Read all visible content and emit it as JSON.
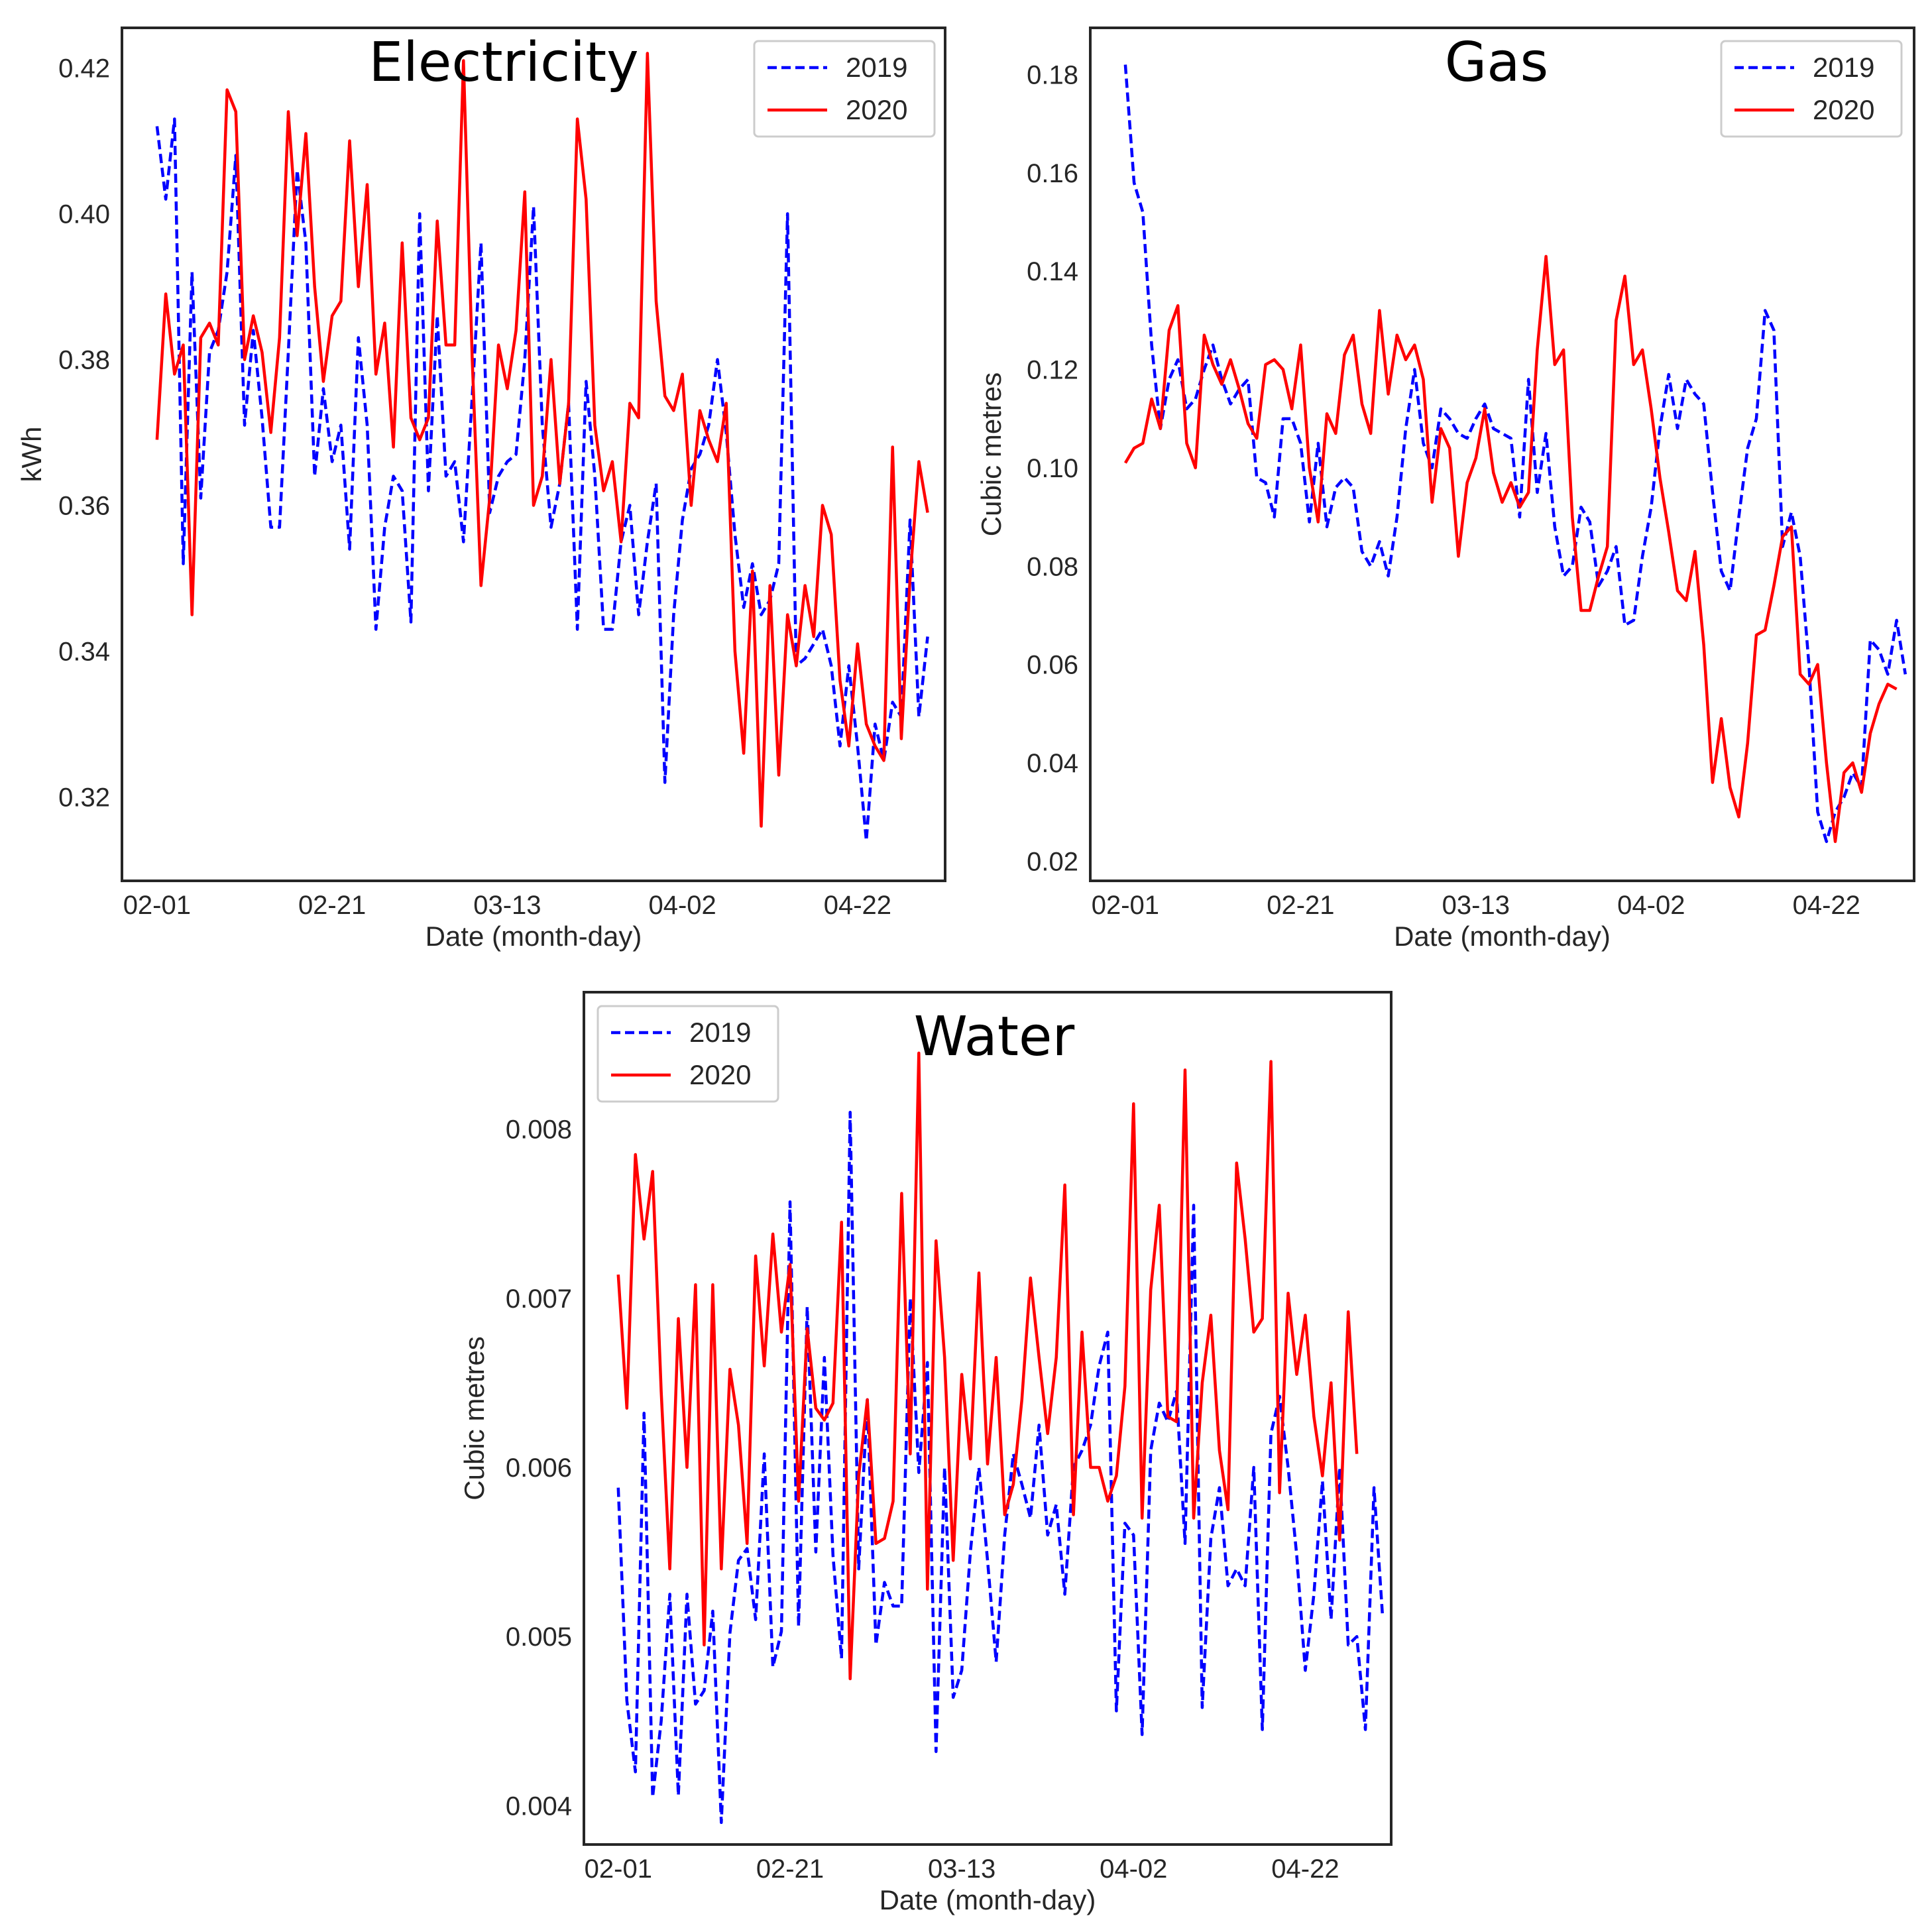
{
  "chart_data": [
    {
      "type": "line",
      "title": "Electricity",
      "xlabel": "Date (month-day)",
      "ylabel": "kWh",
      "ylim": [
        0.3085,
        0.4255
      ],
      "xlim": [
        -4,
        90
      ],
      "yticks": [
        0.32,
        0.34,
        0.36,
        0.38,
        0.4,
        0.42
      ],
      "ytick_labels": [
        "0.32",
        "0.34",
        "0.36",
        "0.38",
        "0.40",
        "0.42"
      ],
      "xticks": [
        0,
        20,
        40,
        60,
        80
      ],
      "xtick_labels": [
        "02-01",
        "02-21",
        "03-13",
        "04-02",
        "04-22"
      ],
      "grid": false,
      "legend_position": "top-right",
      "series": [
        {
          "name": "2019",
          "color": "#0000ff",
          "style": "dashed",
          "values": [
            0.412,
            0.402,
            0.413,
            0.352,
            0.392,
            0.361,
            0.381,
            0.384,
            0.392,
            0.408,
            0.371,
            0.384,
            0.372,
            0.357,
            0.357,
            0.381,
            0.406,
            0.396,
            0.364,
            0.376,
            0.366,
            0.371,
            0.354,
            0.383,
            0.371,
            0.343,
            0.357,
            0.364,
            0.362,
            0.344,
            0.4,
            0.362,
            0.386,
            0.364,
            0.366,
            0.355,
            0.375,
            0.396,
            0.359,
            0.364,
            0.366,
            0.367,
            0.38,
            0.401,
            0.371,
            0.357,
            0.363,
            0.374,
            0.343,
            0.377,
            0.364,
            0.343,
            0.343,
            0.355,
            0.36,
            0.345,
            0.355,
            0.363,
            0.322,
            0.345,
            0.358,
            0.365,
            0.367,
            0.371,
            0.38,
            0.37,
            0.356,
            0.346,
            0.352,
            0.345,
            0.347,
            0.352,
            0.4,
            0.338,
            0.339,
            0.341,
            0.343,
            0.338,
            0.327,
            0.338,
            0.327,
            0.314,
            0.33,
            0.325,
            0.333,
            0.331,
            0.358,
            0.331,
            0.342
          ]
        },
        {
          "name": "2020",
          "color": "#ff0000",
          "style": "solid",
          "values": [
            0.369,
            0.389,
            0.378,
            0.382,
            0.345,
            0.383,
            0.385,
            0.382,
            0.417,
            0.414,
            0.38,
            0.386,
            0.381,
            0.37,
            0.383,
            0.414,
            0.397,
            0.411,
            0.39,
            0.377,
            0.386,
            0.388,
            0.41,
            0.39,
            0.404,
            0.378,
            0.385,
            0.368,
            0.396,
            0.372,
            0.369,
            0.372,
            0.399,
            0.382,
            0.382,
            0.421,
            0.38,
            0.349,
            0.361,
            0.382,
            0.376,
            0.384,
            0.403,
            0.36,
            0.364,
            0.38,
            0.363,
            0.374,
            0.413,
            0.402,
            0.371,
            0.362,
            0.366,
            0.355,
            0.374,
            0.372,
            0.422,
            0.388,
            0.375,
            0.373,
            0.378,
            0.36,
            0.373,
            0.369,
            0.366,
            0.374,
            0.34,
            0.326,
            0.351,
            0.316,
            0.349,
            0.323,
            0.345,
            0.338,
            0.349,
            0.342,
            0.36,
            0.356,
            0.336,
            0.327,
            0.341,
            0.33,
            0.327,
            0.325,
            0.368,
            0.328,
            0.35,
            0.366,
            0.359
          ]
        }
      ]
    },
    {
      "type": "line",
      "title": "Gas",
      "xlabel": "Date (month-day)",
      "ylabel": "Cubic metres",
      "ylim": [
        0.016,
        0.1895
      ],
      "xlim": [
        -4,
        90
      ],
      "yticks": [
        0.02,
        0.04,
        0.06,
        0.08,
        0.1,
        0.12,
        0.14,
        0.16,
        0.18
      ],
      "ytick_labels": [
        "0.02",
        "0.04",
        "0.06",
        "0.08",
        "0.10",
        "0.12",
        "0.14",
        "0.16",
        "0.18"
      ],
      "xticks": [
        0,
        20,
        40,
        60,
        80
      ],
      "xtick_labels": [
        "02-01",
        "02-21",
        "03-13",
        "04-02",
        "04-22"
      ],
      "grid": false,
      "legend_position": "top-right",
      "series": [
        {
          "name": "2019",
          "color": "#0000ff",
          "style": "dashed",
          "values": [
            0.182,
            0.158,
            0.152,
            0.125,
            0.108,
            0.118,
            0.122,
            0.112,
            0.114,
            0.12,
            0.125,
            0.118,
            0.113,
            0.116,
            0.118,
            0.098,
            0.097,
            0.09,
            0.11,
            0.11,
            0.105,
            0.089,
            0.105,
            0.088,
            0.096,
            0.098,
            0.096,
            0.083,
            0.08,
            0.085,
            0.078,
            0.09,
            0.108,
            0.12,
            0.105,
            0.1,
            0.112,
            0.11,
            0.107,
            0.106,
            0.11,
            0.113,
            0.108,
            0.107,
            0.106,
            0.09,
            0.118,
            0.095,
            0.107,
            0.088,
            0.078,
            0.08,
            0.092,
            0.089,
            0.076,
            0.079,
            0.084,
            0.068,
            0.069,
            0.082,
            0.092,
            0.108,
            0.119,
            0.108,
            0.118,
            0.115,
            0.113,
            0.095,
            0.079,
            0.075,
            0.09,
            0.104,
            0.11,
            0.132,
            0.128,
            0.084,
            0.091,
            0.082,
            0.06,
            0.03,
            0.024,
            0.03,
            0.033,
            0.038,
            0.035,
            0.065,
            0.063,
            0.058,
            0.069,
            0.058
          ]
        },
        {
          "name": "2020",
          "color": "#ff0000",
          "style": "solid",
          "values": [
            0.101,
            0.104,
            0.105,
            0.114,
            0.108,
            0.128,
            0.133,
            0.105,
            0.1,
            0.127,
            0.121,
            0.117,
            0.122,
            0.116,
            0.109,
            0.106,
            0.121,
            0.122,
            0.12,
            0.112,
            0.125,
            0.1,
            0.089,
            0.111,
            0.107,
            0.123,
            0.127,
            0.113,
            0.107,
            0.132,
            0.115,
            0.127,
            0.122,
            0.125,
            0.118,
            0.093,
            0.108,
            0.104,
            0.082,
            0.097,
            0.102,
            0.112,
            0.099,
            0.093,
            0.097,
            0.092,
            0.095,
            0.124,
            0.143,
            0.121,
            0.124,
            0.09,
            0.071,
            0.071,
            0.078,
            0.084,
            0.13,
            0.139,
            0.121,
            0.124,
            0.112,
            0.098,
            0.087,
            0.075,
            0.073,
            0.083,
            0.064,
            0.036,
            0.049,
            0.035,
            0.029,
            0.044,
            0.066,
            0.067,
            0.076,
            0.086,
            0.088,
            0.058,
            0.056,
            0.06,
            0.04,
            0.024,
            0.038,
            0.04,
            0.034,
            0.046,
            0.052,
            0.056,
            0.055
          ]
        }
      ]
    },
    {
      "type": "line",
      "title": "Water",
      "xlabel": "Date (month-day)",
      "ylabel": "Cubic metres",
      "ylim": [
        0.00377,
        0.00881
      ],
      "xlim": [
        -4,
        90
      ],
      "yticks": [
        0.004,
        0.005,
        0.006,
        0.007,
        0.008
      ],
      "ytick_labels": [
        "0.004",
        "0.005",
        "0.006",
        "0.007",
        "0.008"
      ],
      "xticks": [
        0,
        20,
        40,
        60,
        80
      ],
      "xtick_labels": [
        "02-01",
        "02-21",
        "03-13",
        "04-02",
        "04-22"
      ],
      "grid": false,
      "legend_position": "top-left",
      "series": [
        {
          "name": "2019",
          "color": "#0000ff",
          "style": "dashed",
          "values": [
            0.00588,
            0.00462,
            0.0042,
            0.00632,
            0.00405,
            0.0045,
            0.00525,
            0.00406,
            0.00525,
            0.0046,
            0.00468,
            0.00515,
            0.0039,
            0.00502,
            0.00545,
            0.00552,
            0.0051,
            0.00608,
            0.00482,
            0.00503,
            0.00757,
            0.00506,
            0.00695,
            0.0055,
            0.00665,
            0.00548,
            0.00487,
            0.0081,
            0.0054,
            0.0064,
            0.00495,
            0.00532,
            0.00518,
            0.00518,
            0.007,
            0.00597,
            0.00662,
            0.00432,
            0.006,
            0.00464,
            0.0048,
            0.0055,
            0.006,
            0.00545,
            0.00485,
            0.0056,
            0.00608,
            0.0059,
            0.0057,
            0.00625,
            0.0056,
            0.00578,
            0.00525,
            0.006,
            0.0061,
            0.00625,
            0.0066,
            0.0068,
            0.00456,
            0.00567,
            0.0056,
            0.00442,
            0.0061,
            0.00638,
            0.00627,
            0.00645,
            0.00555,
            0.00755,
            0.00458,
            0.00558,
            0.00588,
            0.0053,
            0.0054,
            0.0053,
            0.006,
            0.00445,
            0.0062,
            0.00642,
            0.006,
            0.00548,
            0.0048,
            0.00525,
            0.00592,
            0.0051,
            0.006,
            0.00495,
            0.005,
            0.00445,
            0.00588,
            0.00512
          ]
        },
        {
          "name": "2020",
          "color": "#ff0000",
          "style": "solid",
          "values": [
            0.00714,
            0.00635,
            0.00785,
            0.00735,
            0.00775,
            0.00645,
            0.0054,
            0.00688,
            0.006,
            0.00708,
            0.00495,
            0.00708,
            0.0054,
            0.00658,
            0.00625,
            0.00555,
            0.00725,
            0.0066,
            0.00738,
            0.0068,
            0.0072,
            0.0058,
            0.00682,
            0.00635,
            0.00628,
            0.00638,
            0.00745,
            0.00475,
            0.00595,
            0.0064,
            0.00555,
            0.00558,
            0.0058,
            0.00762,
            0.00608,
            0.00845,
            0.00528,
            0.00734,
            0.00665,
            0.00545,
            0.00655,
            0.00605,
            0.00715,
            0.00602,
            0.00665,
            0.00572,
            0.0059,
            0.0064,
            0.00712,
            0.00665,
            0.0062,
            0.00665,
            0.00767,
            0.00572,
            0.0068,
            0.006,
            0.006,
            0.0058,
            0.00595,
            0.00648,
            0.00815,
            0.0057,
            0.00705,
            0.00755,
            0.0063,
            0.00627,
            0.00835,
            0.0057,
            0.0065,
            0.0069,
            0.0061,
            0.00575,
            0.0078,
            0.00735,
            0.0068,
            0.00688,
            0.0084,
            0.00585,
            0.00703,
            0.00655,
            0.0069,
            0.0063,
            0.00595,
            0.0065,
            0.00557,
            0.00692,
            0.00608
          ]
        }
      ]
    }
  ]
}
